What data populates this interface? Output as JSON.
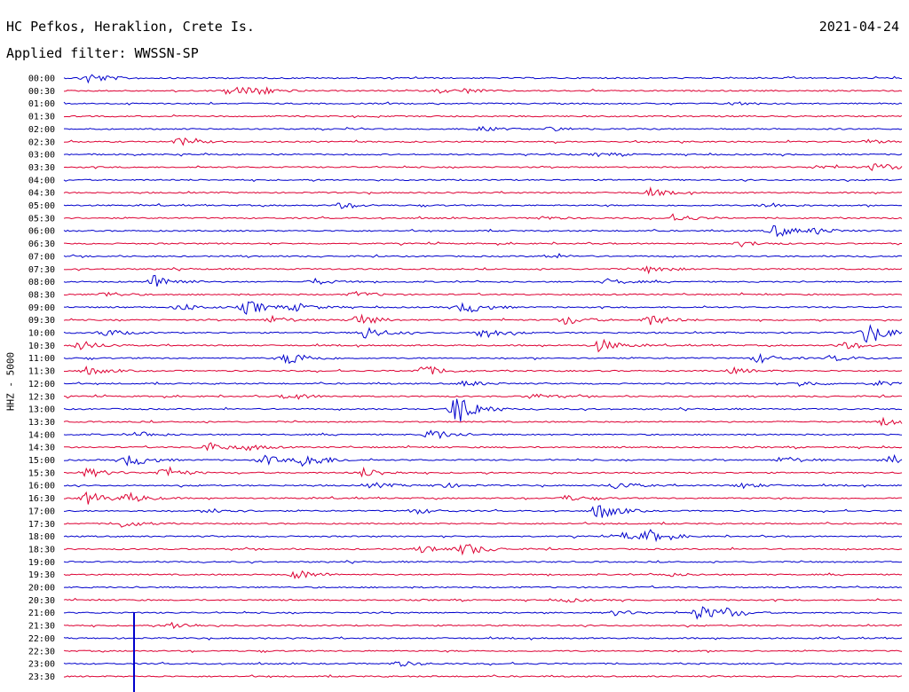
{
  "header": {
    "station": "HC Pefkos, Heraklion, Crete Is.",
    "date": "2021-04-24",
    "filter": "Applied filter: WWSSN-SP"
  },
  "chart_data": {
    "type": "line",
    "title": "HC Pefkos, Heraklion, Crete Is.",
    "subtitle": "Applied filter: WWSSN-SP",
    "ylabel": "HHZ - 5000",
    "xlabel": "",
    "grid": false,
    "colors": [
      "#0000cc",
      "#dd0033"
    ],
    "traces": [
      {
        "label": "00:00",
        "color": "#0000cc",
        "events": [
          [
            0.03,
            6
          ]
        ]
      },
      {
        "label": "00:30",
        "color": "#dd0033",
        "events": [
          [
            0.2,
            6
          ],
          [
            0.23,
            5
          ],
          [
            0.45,
            2
          ],
          [
            0.48,
            2
          ]
        ]
      },
      {
        "label": "01:00",
        "color": "#0000cc",
        "events": [
          [
            0.8,
            2
          ]
        ]
      },
      {
        "label": "01:30",
        "color": "#dd0033",
        "events": []
      },
      {
        "label": "02:00",
        "color": "#0000cc",
        "events": [
          [
            0.5,
            2
          ],
          [
            0.58,
            2
          ]
        ]
      },
      {
        "label": "02:30",
        "color": "#dd0033",
        "events": [
          [
            0.14,
            4
          ],
          [
            0.96,
            2
          ]
        ]
      },
      {
        "label": "03:00",
        "color": "#0000cc",
        "events": [
          [
            0.64,
            2
          ]
        ]
      },
      {
        "label": "03:30",
        "color": "#dd0033",
        "events": [
          [
            0.97,
            5
          ],
          [
            0.9,
            2
          ]
        ]
      },
      {
        "label": "04:00",
        "color": "#0000cc",
        "events": []
      },
      {
        "label": "04:30",
        "color": "#dd0033",
        "events": [
          [
            0.7,
            4
          ]
        ]
      },
      {
        "label": "05:00",
        "color": "#0000cc",
        "events": [
          [
            0.33,
            3
          ],
          [
            0.84,
            3
          ]
        ]
      },
      {
        "label": "05:30",
        "color": "#dd0033",
        "events": [
          [
            0.73,
            4
          ],
          [
            0.57,
            2
          ]
        ]
      },
      {
        "label": "06:00",
        "color": "#0000cc",
        "events": [
          [
            0.85,
            7
          ],
          [
            0.9,
            3
          ]
        ]
      },
      {
        "label": "06:30",
        "color": "#dd0033",
        "events": [
          [
            0.81,
            3
          ]
        ]
      },
      {
        "label": "07:00",
        "color": "#0000cc",
        "events": [
          [
            0.58,
            2
          ]
        ]
      },
      {
        "label": "07:30",
        "color": "#dd0033",
        "events": [
          [
            0.7,
            4
          ]
        ]
      },
      {
        "label": "08:00",
        "color": "#0000cc",
        "events": [
          [
            0.11,
            8
          ],
          [
            0.3,
            3
          ],
          [
            0.65,
            3
          ]
        ]
      },
      {
        "label": "08:30",
        "color": "#dd0033",
        "events": [
          [
            0.05,
            3
          ],
          [
            0.35,
            3
          ]
        ]
      },
      {
        "label": "09:00",
        "color": "#0000cc",
        "events": [
          [
            0.22,
            8
          ],
          [
            0.14,
            4
          ],
          [
            0.28,
            4
          ],
          [
            0.48,
            7
          ]
        ]
      },
      {
        "label": "09:30",
        "color": "#dd0033",
        "events": [
          [
            0.35,
            7
          ],
          [
            0.25,
            4
          ],
          [
            0.6,
            5
          ],
          [
            0.7,
            6
          ]
        ]
      },
      {
        "label": "10:00",
        "color": "#0000cc",
        "events": [
          [
            0.96,
            12
          ],
          [
            0.36,
            7
          ],
          [
            0.5,
            6
          ],
          [
            0.05,
            4
          ]
        ]
      },
      {
        "label": "10:30",
        "color": "#dd0033",
        "events": [
          [
            0.64,
            7
          ],
          [
            0.02,
            5
          ],
          [
            0.93,
            4
          ]
        ]
      },
      {
        "label": "11:00",
        "color": "#0000cc",
        "events": [
          [
            0.27,
            8
          ],
          [
            0.83,
            5
          ],
          [
            0.92,
            3
          ]
        ]
      },
      {
        "label": "11:30",
        "color": "#dd0033",
        "events": [
          [
            0.43,
            6
          ],
          [
            0.8,
            3
          ],
          [
            0.03,
            4
          ]
        ]
      },
      {
        "label": "12:00",
        "color": "#0000cc",
        "events": [
          [
            0.48,
            3
          ],
          [
            0.88,
            3
          ],
          [
            0.97,
            3
          ]
        ]
      },
      {
        "label": "12:30",
        "color": "#dd0033",
        "events": [
          [
            0.27,
            4
          ],
          [
            0.56,
            3
          ]
        ]
      },
      {
        "label": "13:00",
        "color": "#0000cc",
        "events": [
          [
            0.47,
            18
          ]
        ]
      },
      {
        "label": "13:30",
        "color": "#dd0033",
        "events": [
          [
            0.98,
            4
          ]
        ]
      },
      {
        "label": "14:00",
        "color": "#0000cc",
        "events": [
          [
            0.44,
            6
          ],
          [
            0.09,
            3
          ]
        ]
      },
      {
        "label": "14:30",
        "color": "#dd0033",
        "events": [
          [
            0.17,
            6
          ],
          [
            0.22,
            3
          ]
        ]
      },
      {
        "label": "15:00",
        "color": "#0000cc",
        "events": [
          [
            0.29,
            9
          ],
          [
            0.08,
            7
          ],
          [
            0.24,
            5
          ],
          [
            0.86,
            4
          ],
          [
            0.99,
            5
          ]
        ]
      },
      {
        "label": "15:30",
        "color": "#dd0033",
        "events": [
          [
            0.03,
            5
          ],
          [
            0.12,
            6
          ],
          [
            0.36,
            5
          ]
        ]
      },
      {
        "label": "16:00",
        "color": "#0000cc",
        "events": [
          [
            0.66,
            4
          ],
          [
            0.37,
            3
          ],
          [
            0.81,
            3
          ],
          [
            0.45,
            3
          ]
        ]
      },
      {
        "label": "16:30",
        "color": "#dd0033",
        "events": [
          [
            0.03,
            7
          ],
          [
            0.08,
            5
          ],
          [
            0.6,
            3
          ]
        ]
      },
      {
        "label": "17:00",
        "color": "#0000cc",
        "events": [
          [
            0.64,
            9
          ],
          [
            0.42,
            3
          ],
          [
            0.18,
            3
          ]
        ]
      },
      {
        "label": "17:30",
        "color": "#dd0033",
        "events": [
          [
            0.07,
            4
          ]
        ]
      },
      {
        "label": "18:00",
        "color": "#0000cc",
        "events": [
          [
            0.7,
            6
          ],
          [
            0.67,
            4
          ]
        ]
      },
      {
        "label": "18:30",
        "color": "#dd0033",
        "events": [
          [
            0.48,
            7
          ],
          [
            0.43,
            4
          ]
        ]
      },
      {
        "label": "19:00",
        "color": "#0000cc",
        "events": []
      },
      {
        "label": "19:30",
        "color": "#dd0033",
        "events": [
          [
            0.28,
            5
          ],
          [
            0.72,
            2
          ]
        ]
      },
      {
        "label": "20:00",
        "color": "#0000cc",
        "events": []
      },
      {
        "label": "20:30",
        "color": "#dd0033",
        "events": [
          [
            0.6,
            2
          ]
        ]
      },
      {
        "label": "21:00",
        "color": "#0000cc",
        "events": [
          [
            0.76,
            8
          ],
          [
            0.66,
            3
          ],
          [
            0.79,
            4
          ]
        ]
      },
      {
        "label": "21:30",
        "color": "#dd0033",
        "events": [
          [
            0.13,
            4
          ]
        ]
      },
      {
        "label": "22:00",
        "color": "#0000cc",
        "events": []
      },
      {
        "label": "22:30",
        "color": "#dd0033",
        "events": []
      },
      {
        "label": "23:00",
        "color": "#0000cc",
        "events": [
          [
            0.4,
            3
          ]
        ]
      },
      {
        "label": "23:30",
        "color": "#dd0033",
        "events": []
      }
    ]
  }
}
